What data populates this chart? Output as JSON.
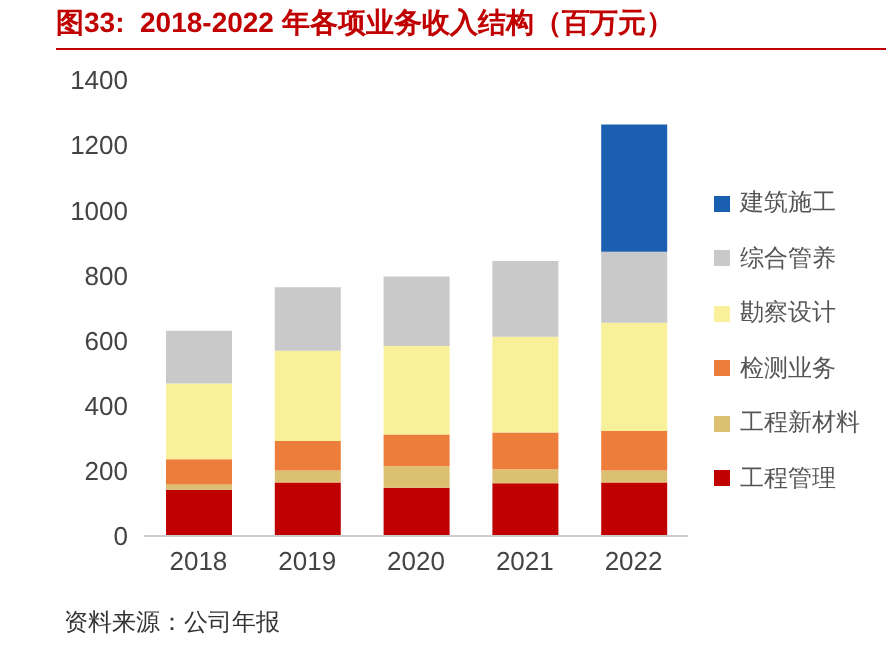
{
  "chart_data": {
    "type": "bar",
    "stacked": true,
    "title": "图33:  2018-2022 年各项业务收入结构（百万元）",
    "annotations": [
      "资料来源：公司年报"
    ],
    "categories": [
      "2018",
      "2019",
      "2020",
      "2021",
      "2022"
    ],
    "series": [
      {
        "name": "工程管理",
        "color": "#c00000",
        "values": [
          142,
          164,
          148,
          162,
          164
        ]
      },
      {
        "name": "工程新材料",
        "color": "#dcc072",
        "values": [
          16,
          37,
          66,
          43,
          37
        ]
      },
      {
        "name": "检测业务",
        "color": "#ed7d3a",
        "values": [
          78,
          91,
          98,
          113,
          121
        ]
      },
      {
        "name": "勘察设计",
        "color": "#f9f09a",
        "values": [
          232,
          277,
          271,
          294,
          333
        ]
      },
      {
        "name": "综合管养",
        "color": "#c9c9c9",
        "values": [
          162,
          195,
          214,
          232,
          218
        ]
      },
      {
        "name": "建筑施工",
        "color": "#1a5fb0",
        "values": [
          null,
          null,
          null,
          null,
          390
        ]
      }
    ],
    "ylim": [
      0,
      1400
    ],
    "yticks": [
      0,
      200,
      400,
      600,
      800,
      1000,
      1200,
      1400
    ],
    "grid": false,
    "legend": "right"
  }
}
